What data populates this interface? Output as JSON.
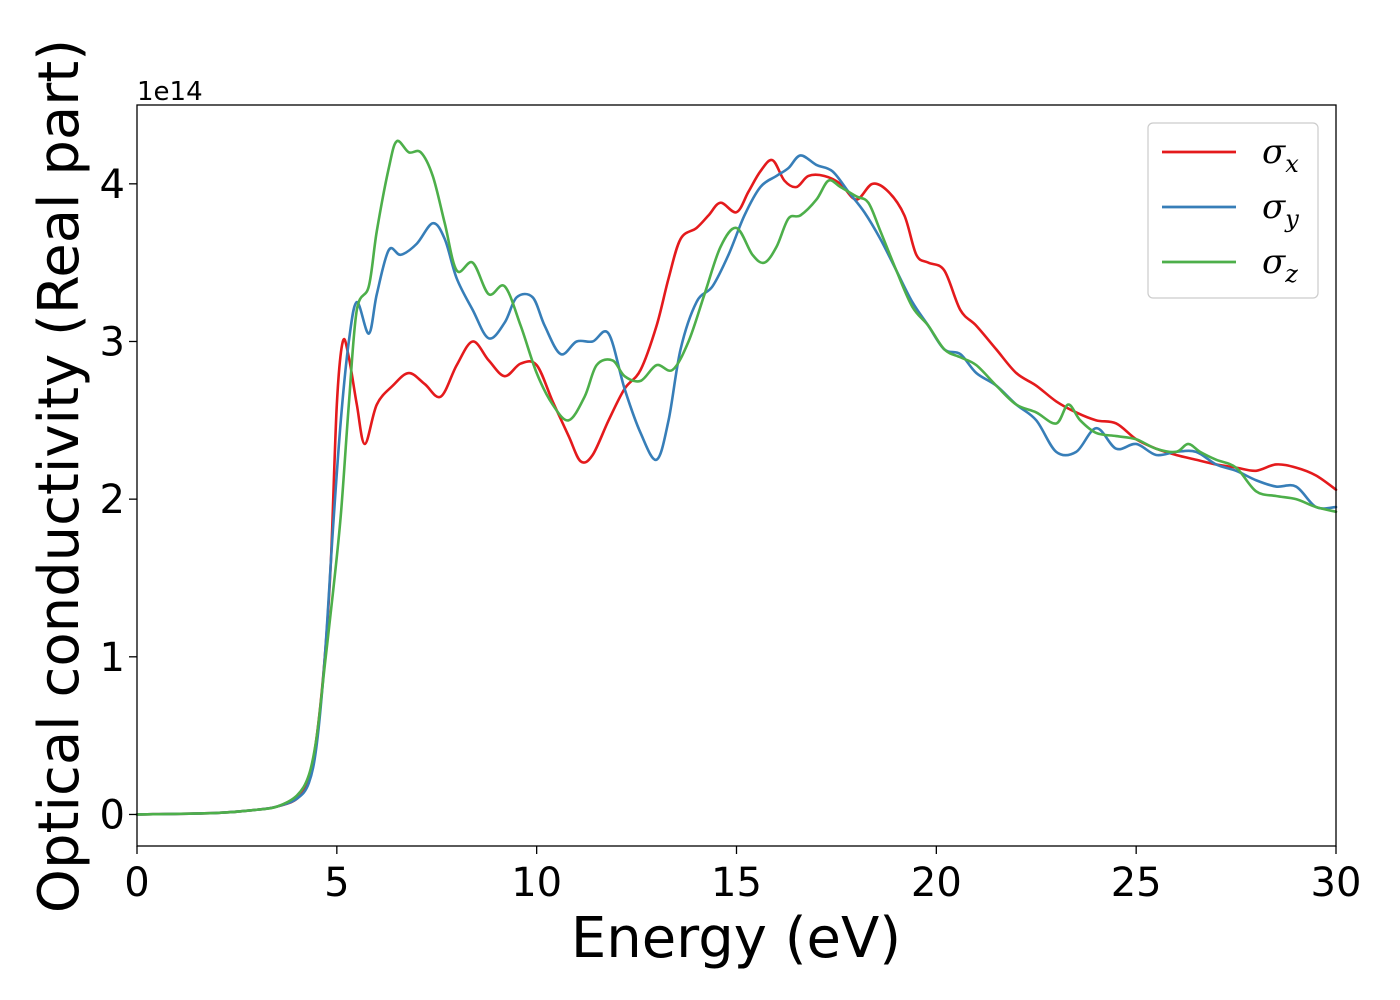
{
  "chart_data": {
    "type": "line",
    "xlabel": "Energy (eV)",
    "ylabel": "Optical conductivity (Real part)",
    "y_offset_label": "1e14",
    "xlim": [
      0,
      30
    ],
    "ylim": [
      -0.2,
      4.5
    ],
    "x_ticks": [
      0,
      5,
      10,
      15,
      20,
      25,
      30
    ],
    "y_ticks": [
      0,
      1,
      2,
      3,
      4
    ],
    "grid": false,
    "legend_position": "top-right",
    "series": [
      {
        "name": "σ",
        "subscript": "x",
        "color": "#e41a1c",
        "points": [
          [
            0,
            0
          ],
          [
            2,
            0.01
          ],
          [
            3,
            0.03
          ],
          [
            3.5,
            0.05
          ],
          [
            4,
            0.1
          ],
          [
            4.3,
            0.22
          ],
          [
            4.5,
            0.5
          ],
          [
            4.7,
            1.0
          ],
          [
            4.85,
            1.6
          ],
          [
            5.0,
            2.6
          ],
          [
            5.15,
            3.0
          ],
          [
            5.3,
            2.9
          ],
          [
            5.5,
            2.6
          ],
          [
            5.7,
            2.35
          ],
          [
            6.0,
            2.6
          ],
          [
            6.4,
            2.72
          ],
          [
            6.8,
            2.8
          ],
          [
            7.2,
            2.73
          ],
          [
            7.6,
            2.65
          ],
          [
            8.0,
            2.85
          ],
          [
            8.4,
            3.0
          ],
          [
            8.8,
            2.88
          ],
          [
            9.2,
            2.78
          ],
          [
            9.6,
            2.86
          ],
          [
            10.0,
            2.85
          ],
          [
            10.4,
            2.62
          ],
          [
            10.8,
            2.4
          ],
          [
            11.1,
            2.24
          ],
          [
            11.4,
            2.28
          ],
          [
            11.8,
            2.5
          ],
          [
            12.2,
            2.7
          ],
          [
            12.6,
            2.82
          ],
          [
            13.0,
            3.1
          ],
          [
            13.3,
            3.4
          ],
          [
            13.6,
            3.65
          ],
          [
            14.0,
            3.72
          ],
          [
            14.3,
            3.8
          ],
          [
            14.6,
            3.88
          ],
          [
            15.0,
            3.82
          ],
          [
            15.3,
            3.95
          ],
          [
            15.6,
            4.08
          ],
          [
            15.9,
            4.15
          ],
          [
            16.2,
            4.02
          ],
          [
            16.5,
            3.98
          ],
          [
            16.8,
            4.05
          ],
          [
            17.2,
            4.05
          ],
          [
            17.6,
            4.0
          ],
          [
            18.0,
            3.9
          ],
          [
            18.4,
            4.0
          ],
          [
            18.8,
            3.95
          ],
          [
            19.2,
            3.8
          ],
          [
            19.5,
            3.55
          ],
          [
            19.8,
            3.5
          ],
          [
            20.2,
            3.45
          ],
          [
            20.6,
            3.2
          ],
          [
            21.0,
            3.1
          ],
          [
            21.5,
            2.95
          ],
          [
            22.0,
            2.8
          ],
          [
            22.5,
            2.72
          ],
          [
            23.0,
            2.62
          ],
          [
            23.5,
            2.55
          ],
          [
            24.0,
            2.5
          ],
          [
            24.5,
            2.48
          ],
          [
            25.0,
            2.38
          ],
          [
            25.5,
            2.32
          ],
          [
            26.0,
            2.28
          ],
          [
            26.5,
            2.25
          ],
          [
            27.0,
            2.22
          ],
          [
            27.5,
            2.2
          ],
          [
            28.0,
            2.18
          ],
          [
            28.5,
            2.22
          ],
          [
            29.0,
            2.2
          ],
          [
            29.5,
            2.15
          ],
          [
            30.0,
            2.06
          ]
        ]
      },
      {
        "name": "σ",
        "subscript": "y",
        "color": "#377eb8",
        "points": [
          [
            0,
            0
          ],
          [
            2,
            0.01
          ],
          [
            3,
            0.03
          ],
          [
            3.5,
            0.05
          ],
          [
            4,
            0.1
          ],
          [
            4.3,
            0.2
          ],
          [
            4.5,
            0.45
          ],
          [
            4.7,
            1.0
          ],
          [
            4.9,
            1.8
          ],
          [
            5.1,
            2.5
          ],
          [
            5.3,
            3.0
          ],
          [
            5.5,
            3.25
          ],
          [
            5.8,
            3.05
          ],
          [
            6.0,
            3.3
          ],
          [
            6.3,
            3.58
          ],
          [
            6.6,
            3.55
          ],
          [
            7.0,
            3.62
          ],
          [
            7.4,
            3.75
          ],
          [
            7.7,
            3.65
          ],
          [
            8.0,
            3.4
          ],
          [
            8.4,
            3.2
          ],
          [
            8.8,
            3.02
          ],
          [
            9.2,
            3.12
          ],
          [
            9.5,
            3.28
          ],
          [
            9.9,
            3.28
          ],
          [
            10.2,
            3.1
          ],
          [
            10.6,
            2.92
          ],
          [
            11.0,
            3.0
          ],
          [
            11.4,
            3.0
          ],
          [
            11.8,
            3.05
          ],
          [
            12.2,
            2.7
          ],
          [
            12.6,
            2.42
          ],
          [
            13.0,
            2.25
          ],
          [
            13.3,
            2.5
          ],
          [
            13.6,
            2.95
          ],
          [
            14.0,
            3.25
          ],
          [
            14.4,
            3.35
          ],
          [
            14.8,
            3.55
          ],
          [
            15.2,
            3.8
          ],
          [
            15.6,
            3.98
          ],
          [
            16.0,
            4.05
          ],
          [
            16.3,
            4.1
          ],
          [
            16.6,
            4.18
          ],
          [
            17.0,
            4.12
          ],
          [
            17.4,
            4.08
          ],
          [
            17.8,
            3.95
          ],
          [
            18.2,
            3.82
          ],
          [
            18.6,
            3.65
          ],
          [
            19.0,
            3.45
          ],
          [
            19.4,
            3.25
          ],
          [
            19.8,
            3.1
          ],
          [
            20.2,
            2.95
          ],
          [
            20.6,
            2.92
          ],
          [
            21.0,
            2.8
          ],
          [
            21.5,
            2.72
          ],
          [
            22.0,
            2.6
          ],
          [
            22.5,
            2.5
          ],
          [
            23.0,
            2.3
          ],
          [
            23.5,
            2.3
          ],
          [
            24.0,
            2.45
          ],
          [
            24.5,
            2.32
          ],
          [
            25.0,
            2.35
          ],
          [
            25.5,
            2.28
          ],
          [
            26.0,
            2.3
          ],
          [
            26.5,
            2.3
          ],
          [
            27.0,
            2.22
          ],
          [
            27.5,
            2.18
          ],
          [
            28.0,
            2.12
          ],
          [
            28.5,
            2.08
          ],
          [
            29.0,
            2.08
          ],
          [
            29.5,
            1.95
          ],
          [
            30.0,
            1.95
          ]
        ]
      },
      {
        "name": "σ",
        "subscript": "z",
        "color": "#4daf4a",
        "points": [
          [
            0,
            0
          ],
          [
            2,
            0.01
          ],
          [
            3,
            0.03
          ],
          [
            3.5,
            0.05
          ],
          [
            4,
            0.12
          ],
          [
            4.3,
            0.25
          ],
          [
            4.5,
            0.5
          ],
          [
            4.7,
            0.95
          ],
          [
            4.9,
            1.4
          ],
          [
            5.1,
            1.9
          ],
          [
            5.3,
            2.6
          ],
          [
            5.5,
            3.2
          ],
          [
            5.8,
            3.35
          ],
          [
            6.0,
            3.7
          ],
          [
            6.3,
            4.1
          ],
          [
            6.5,
            4.27
          ],
          [
            6.8,
            4.2
          ],
          [
            7.1,
            4.2
          ],
          [
            7.4,
            4.05
          ],
          [
            7.7,
            3.75
          ],
          [
            8.0,
            3.45
          ],
          [
            8.4,
            3.5
          ],
          [
            8.8,
            3.3
          ],
          [
            9.2,
            3.35
          ],
          [
            9.6,
            3.1
          ],
          [
            10.0,
            2.8
          ],
          [
            10.4,
            2.6
          ],
          [
            10.8,
            2.5
          ],
          [
            11.2,
            2.65
          ],
          [
            11.5,
            2.85
          ],
          [
            11.9,
            2.88
          ],
          [
            12.2,
            2.78
          ],
          [
            12.6,
            2.75
          ],
          [
            13.0,
            2.85
          ],
          [
            13.4,
            2.82
          ],
          [
            13.8,
            3.0
          ],
          [
            14.2,
            3.3
          ],
          [
            14.6,
            3.6
          ],
          [
            15.0,
            3.72
          ],
          [
            15.4,
            3.55
          ],
          [
            15.7,
            3.5
          ],
          [
            16.0,
            3.6
          ],
          [
            16.3,
            3.78
          ],
          [
            16.6,
            3.8
          ],
          [
            17.0,
            3.9
          ],
          [
            17.3,
            4.02
          ],
          [
            17.6,
            3.98
          ],
          [
            18.0,
            3.92
          ],
          [
            18.3,
            3.88
          ],
          [
            18.6,
            3.7
          ],
          [
            19.0,
            3.45
          ],
          [
            19.4,
            3.22
          ],
          [
            19.8,
            3.1
          ],
          [
            20.2,
            2.95
          ],
          [
            20.6,
            2.9
          ],
          [
            21.0,
            2.85
          ],
          [
            21.5,
            2.72
          ],
          [
            22.0,
            2.6
          ],
          [
            22.5,
            2.55
          ],
          [
            23.0,
            2.48
          ],
          [
            23.3,
            2.6
          ],
          [
            23.6,
            2.5
          ],
          [
            24.0,
            2.42
          ],
          [
            24.5,
            2.4
          ],
          [
            25.0,
            2.38
          ],
          [
            25.5,
            2.32
          ],
          [
            26.0,
            2.3
          ],
          [
            26.3,
            2.35
          ],
          [
            26.6,
            2.3
          ],
          [
            27.0,
            2.25
          ],
          [
            27.5,
            2.2
          ],
          [
            28.0,
            2.05
          ],
          [
            28.5,
            2.02
          ],
          [
            29.0,
            2.0
          ],
          [
            29.5,
            1.95
          ],
          [
            30.0,
            1.92
          ]
        ]
      }
    ]
  }
}
